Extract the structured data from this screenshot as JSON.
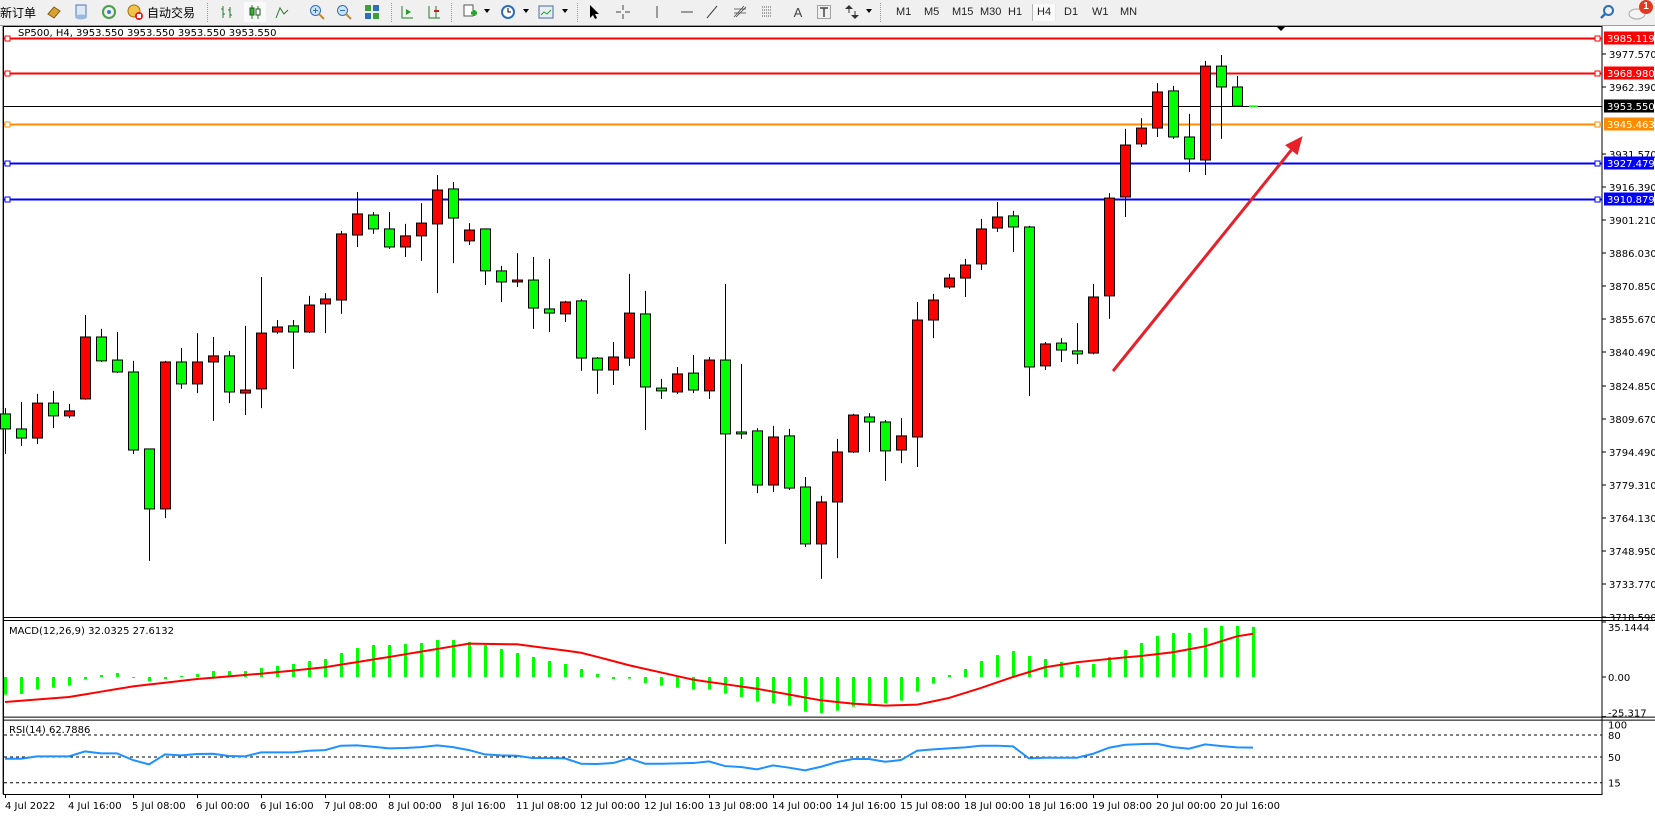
{
  "toolbar": {
    "new_order_label": "新订单",
    "auto_trading_label": "自动交易",
    "timeframes": [
      "M1",
      "M5",
      "M15",
      "M30",
      "H1",
      "H4",
      "D1",
      "W1",
      "MN"
    ],
    "selected_timeframe": "H4",
    "notification_count": "1",
    "icons": [
      "gold-icon",
      "quotes-icon",
      "signals-icon",
      "auto-trading-icon",
      "bar-chart-icon",
      "candlestick-icon",
      "line-chart-icon",
      "zoom-in-icon",
      "zoom-out-icon",
      "tile-windows-icon",
      "auto-scroll-icon",
      "chart-shift-icon",
      "indicators-icon",
      "periods-icon",
      "templates-icon",
      "cursor-icon",
      "crosshair-icon",
      "vertical-line-icon",
      "horizontal-line-icon",
      "trendline-icon",
      "fibonacci-icon",
      "fibo-fan-icon",
      "text-icon",
      "text-label-icon",
      "arrows-icon",
      "search-icon",
      "notification-icon"
    ]
  },
  "chart_header": "SP500, H4, 3953.550 3953.550 3953.550 3953.550",
  "chart_data": [
    {
      "type": "candlestick",
      "symbol": "SP500",
      "timeframe": "H4",
      "up_color": "#ff0000",
      "down_color": "#00ff00",
      "ylim": [
        3718.59,
        3990.45
      ],
      "y_ticks": [
        "3977.570",
        "3962.390",
        "3931.570",
        "3916.390",
        "3901.210",
        "3886.030",
        "3870.850",
        "3855.670",
        "3840.490",
        "3824.850",
        "3809.670",
        "3794.490",
        "3779.310",
        "3764.130",
        "3748.950",
        "3733.770",
        "3718.590"
      ],
      "x_ticks": [
        {
          "label": "4 Jul 2022",
          "t": "4 Jul 00:00"
        },
        {
          "label": "4 Jul 16:00",
          "t": "4 Jul 16:00"
        },
        {
          "label": "5 Jul 08:00",
          "t": "5 Jul 08:00"
        },
        {
          "label": "6 Jul 00:00",
          "t": "6 Jul 00:00"
        },
        {
          "label": "6 Jul 16:00",
          "t": "6 Jul 16:00"
        },
        {
          "label": "7 Jul 08:00",
          "t": "7 Jul 08:00"
        },
        {
          "label": "8 Jul 00:00",
          "t": "8 Jul 00:00"
        },
        {
          "label": "8 Jul 16:00",
          "t": "8 Jul 16:00"
        },
        {
          "label": "11 Jul 08:00",
          "t": "11 Jul 08:00"
        },
        {
          "label": "12 Jul 00:00",
          "t": "12 Jul 00:00"
        },
        {
          "label": "12 Jul 16:00",
          "t": "12 Jul 16:00"
        },
        {
          "label": "13 Jul 08:00",
          "t": "13 Jul 08:00"
        },
        {
          "label": "14 Jul 00:00",
          "t": "14 Jul 00:00"
        },
        {
          "label": "14 Jul 16:00",
          "t": "14 Jul 16:00"
        },
        {
          "label": "15 Jul 08:00",
          "t": "15 Jul 08:00"
        },
        {
          "label": "18 Jul 00:00",
          "t": "18 Jul 00:00"
        },
        {
          "label": "18 Jul 16:00",
          "t": "18 Jul 16:00"
        },
        {
          "label": "19 Jul 08:00",
          "t": "19 Jul 08:00"
        },
        {
          "label": "20 Jul 00:00",
          "t": "20 Jul 00:00"
        },
        {
          "label": "20 Jul 16:00",
          "t": "20 Jul 16:00"
        }
      ],
      "candles_fields": [
        "time",
        "open",
        "high",
        "low",
        "close"
      ],
      "candles": [
        [
          "4 Jul 00:00",
          3812.0,
          3814.7,
          3793.6,
          3805.1
        ],
        [
          "4 Jul 04:00",
          3805.1,
          3817.5,
          3797.3,
          3800.9
        ],
        [
          "4 Jul 08:00",
          3800.9,
          3821.2,
          3798.2,
          3817.0
        ],
        [
          "4 Jul 12:00",
          3817.0,
          3822.6,
          3805.5,
          3811.1
        ],
        [
          "4 Jul 16:00",
          3811.1,
          3816.6,
          3810.1,
          3813.4
        ],
        [
          "4 Jul 20:00",
          3818.9,
          3857.5,
          3818.5,
          3847.4
        ],
        [
          "5 Jul 00:00",
          3847.4,
          3851.1,
          3835.9,
          3836.4
        ],
        [
          "5 Jul 04:00",
          3836.8,
          3849.7,
          3830.8,
          3831.3
        ],
        [
          "5 Jul 08:00",
          3831.3,
          3836.4,
          3793.6,
          3795.4
        ],
        [
          "5 Jul 12:00",
          3795.9,
          3796.0,
          3744.4,
          3768.3
        ],
        [
          "5 Jul 16:00",
          3768.3,
          3836.4,
          3764.1,
          3835.9
        ],
        [
          "5 Jul 20:00",
          3835.9,
          3842.3,
          3823.5,
          3825.8
        ],
        [
          "6 Jul 00:00",
          3825.8,
          3849.2,
          3821.6,
          3835.9
        ],
        [
          "6 Jul 04:00",
          3835.9,
          3847.4,
          3808.8,
          3838.7
        ],
        [
          "6 Jul 08:00",
          3838.7,
          3841.0,
          3817.0,
          3822.1
        ],
        [
          "6 Jul 12:00",
          3821.6,
          3852.5,
          3811.5,
          3823.0
        ],
        [
          "6 Jul 16:00",
          3823.5,
          3875.0,
          3814.7,
          3849.2
        ],
        [
          "6 Jul 20:00",
          3849.7,
          3855.2,
          3848.8,
          3852.0
        ],
        [
          "7 Jul 00:00",
          3852.5,
          3855.2,
          3832.7,
          3849.7
        ],
        [
          "7 Jul 04:00",
          3849.7,
          3866.3,
          3849.2,
          3862.1
        ],
        [
          "7 Jul 08:00",
          3862.6,
          3867.6,
          3849.2,
          3864.9
        ],
        [
          "7 Jul 12:00",
          3864.4,
          3896.2,
          3858.0,
          3894.8
        ],
        [
          "7 Jul 16:00",
          3894.3,
          3914.1,
          3888.8,
          3904.0
        ],
        [
          "7 Jul 20:00",
          3903.5,
          3904.9,
          3894.8,
          3897.1
        ],
        [
          "8 Jul 00:00",
          3897.1,
          3904.9,
          3887.9,
          3888.8
        ],
        [
          "8 Jul 04:00",
          3888.8,
          3899.4,
          3884.2,
          3893.9
        ],
        [
          "8 Jul 08:00",
          3893.9,
          3909.0,
          3882.4,
          3899.8
        ],
        [
          "8 Jul 12:00",
          3899.4,
          3921.9,
          3867.6,
          3915.0
        ],
        [
          "8 Jul 16:00",
          3915.5,
          3918.7,
          3881.4,
          3902.1
        ],
        [
          "8 Jul 20:00",
          3891.6,
          3899.8,
          3889.7,
          3896.6
        ],
        [
          "11 Jul 00:00",
          3897.1,
          3897.1,
          3871.3,
          3877.8
        ],
        [
          "11 Jul 04:00",
          3877.8,
          3880.1,
          3863.5,
          3872.7
        ],
        [
          "11 Jul 08:00",
          3872.7,
          3886.0,
          3870.4,
          3873.6
        ],
        [
          "11 Jul 12:00",
          3873.6,
          3884.2,
          3851.1,
          3860.7
        ],
        [
          "11 Jul 16:00",
          3860.3,
          3883.3,
          3849.7,
          3858.4
        ],
        [
          "11 Jul 20:00",
          3858.0,
          3864.0,
          3854.3,
          3863.5
        ],
        [
          "12 Jul 00:00",
          3864.0,
          3864.9,
          3831.8,
          3837.7
        ],
        [
          "12 Jul 04:00",
          3837.7,
          3838.2,
          3821.2,
          3832.2
        ],
        [
          "12 Jul 08:00",
          3832.2,
          3845.1,
          3825.3,
          3838.2
        ],
        [
          "12 Jul 12:00",
          3837.7,
          3876.4,
          3834.1,
          3858.4
        ],
        [
          "12 Jul 16:00",
          3858.0,
          3868.6,
          3804.6,
          3824.4
        ],
        [
          "12 Jul 20:00",
          3823.9,
          3828.1,
          3818.9,
          3822.6
        ],
        [
          "13 Jul 00:00",
          3822.1,
          3833.6,
          3821.2,
          3830.4
        ],
        [
          "13 Jul 04:00",
          3830.8,
          3839.1,
          3821.6,
          3823.0
        ],
        [
          "13 Jul 08:00",
          3822.6,
          3838.2,
          3818.9,
          3836.8
        ],
        [
          "13 Jul 12:00",
          3836.8,
          3871.8,
          3752.2,
          3802.8
        ],
        [
          "13 Jul 16:00",
          3803.7,
          3835.0,
          3800.5,
          3802.8
        ],
        [
          "13 Jul 20:00",
          3804.2,
          3805.5,
          3775.6,
          3779.3
        ],
        [
          "14 Jul 00:00",
          3779.3,
          3806.5,
          3776.1,
          3801.4
        ],
        [
          "14 Jul 04:00",
          3801.9,
          3805.1,
          3777.0,
          3777.9
        ],
        [
          "14 Jul 08:00",
          3778.4,
          3783.0,
          3750.8,
          3752.2
        ],
        [
          "14 Jul 12:00",
          3752.2,
          3774.3,
          3736.1,
          3771.5
        ],
        [
          "14 Jul 16:00",
          3771.5,
          3800.5,
          3745.7,
          3794.5
        ],
        [
          "14 Jul 20:00",
          3794.5,
          3812.0,
          3794.0,
          3811.5
        ],
        [
          "15 Jul 00:00",
          3810.6,
          3812.4,
          3794.5,
          3808.3
        ],
        [
          "15 Jul 04:00",
          3808.3,
          3809.2,
          3781.2,
          3795.0
        ],
        [
          "15 Jul 08:00",
          3795.4,
          3810.1,
          3789.4,
          3801.9
        ],
        [
          "15 Jul 12:00",
          3801.4,
          3863.5,
          3787.6,
          3855.2
        ],
        [
          "15 Jul 16:00",
          3855.2,
          3867.2,
          3846.9,
          3864.4
        ],
        [
          "15 Jul 20:00",
          3870.4,
          3876.4,
          3869.5,
          3874.5
        ],
        [
          "18 Jul 00:00",
          3874.5,
          3883.3,
          3865.8,
          3880.5
        ],
        [
          "18 Jul 04:00",
          3881.0,
          3901.7,
          3878.2,
          3897.1
        ],
        [
          "18 Jul 08:00",
          3897.5,
          3909.5,
          3895.7,
          3902.6
        ],
        [
          "18 Jul 12:00",
          3903.1,
          3905.4,
          3886.5,
          3898.0
        ],
        [
          "18 Jul 16:00",
          3898.0,
          3898.5,
          3820.3,
          3833.6
        ],
        [
          "18 Jul 20:00",
          3834.1,
          3845.1,
          3832.2,
          3844.2
        ],
        [
          "19 Jul 00:00",
          3844.6,
          3846.9,
          3835.9,
          3841.4
        ],
        [
          "19 Jul 04:00",
          3841.0,
          3853.8,
          3835.0,
          3839.6
        ],
        [
          "19 Jul 08:00",
          3840.0,
          3871.8,
          3839.4,
          3865.8
        ],
        [
          "19 Jul 12:00",
          3866.3,
          3913.6,
          3855.7,
          3911.3
        ],
        [
          "19 Jul 16:00",
          3911.8,
          3943.1,
          3902.6,
          3935.7
        ],
        [
          "19 Jul 20:00",
          3936.2,
          3948.1,
          3934.8,
          3943.5
        ],
        [
          "20 Jul 00:00",
          3943.5,
          3964.2,
          3939.4,
          3960.1
        ],
        [
          "20 Jul 04:00",
          3960.6,
          3962.9,
          3938.5,
          3939.4
        ],
        [
          "20 Jul 08:00",
          3939.4,
          3950.0,
          3923.3,
          3929.3
        ],
        [
          "20 Jul 12:00",
          3928.8,
          3974.4,
          3921.9,
          3972.0
        ],
        [
          "20 Jul 16:00",
          3972.0,
          3977.1,
          3938.5,
          3962.4
        ],
        [
          "20 Jul 20:00",
          3962.4,
          3967.5,
          3953.55,
          3953.55
        ],
        [
          "21 Jul 00:00",
          3953.55,
          3953.55,
          3953.55,
          3953.55
        ]
      ],
      "horizontal_lines": [
        {
          "price": 3985.119,
          "label": "3985.119",
          "color": "#ff0000",
          "handles": true
        },
        {
          "price": 3968.98,
          "label": "3968.980",
          "color": "#ff0000",
          "handles": true
        },
        {
          "price": 3953.55,
          "label": "3953.550",
          "color": "#000000",
          "handles": false
        },
        {
          "price": 3945.463,
          "label": "3945.463",
          "color": "#ff8c00",
          "handles": true
        },
        {
          "price": 3927.479,
          "label": "3927.479",
          "color": "#0000ff",
          "handles": true
        },
        {
          "price": 3910.879,
          "label": "3910.879",
          "color": "#0000ff",
          "handles": true
        }
      ],
      "arrow": {
        "color": "#e8202a",
        "from_bar": 69.25,
        "from_price": 3831.7,
        "to_bar": 81.1,
        "to_price": 3939.8
      }
    },
    {
      "type": "bar+line",
      "title": "MACD(12,26,9) 32.0325 27.6132",
      "ylim": [
        -25.317,
        35.1444
      ],
      "y_ticks": [
        "35.1444",
        "0.00",
        "-25.317"
      ],
      "histogram_color": "#00ff00",
      "signal_color": "#ff0000",
      "macd": [
        -11.29,
        -10.86,
        -7.88,
        -6.82,
        -5.54,
        -1.7,
        1.28,
        2.56,
        -0.64,
        -2.77,
        -1.28,
        0.64,
        1.92,
        3.83,
        3.83,
        3.83,
        5.75,
        7.03,
        8.31,
        10.22,
        11.5,
        15.34,
        18.53,
        20.45,
        20.45,
        21.09,
        21.73,
        23.64,
        23.64,
        22.36,
        20.45,
        17.89,
        15.34,
        12.78,
        10.22,
        8.31,
        5.11,
        1.92,
        -1.28,
        -1.06,
        -3.83,
        -5.54,
        -6.82,
        -8.09,
        -8.09,
        -10.65,
        -12.78,
        -15.76,
        -16.61,
        -18.32,
        -22.15,
        -23.0,
        -21.51,
        -18.96,
        -17.25,
        -16.61,
        -15.12,
        -9.37,
        -4.26,
        1.28,
        5.11,
        10.22,
        14.06,
        16.61,
        13.42,
        11.5,
        9.58,
        7.67,
        8.31,
        12.78,
        17.25,
        21.73,
        26.2,
        28.12,
        28.12,
        31.31,
        32.59,
        32.59,
        32.03
      ],
      "signal": [
        -16.0,
        -15.2,
        -14.4,
        -13.6,
        -12.8,
        -11.1,
        -9.4,
        -7.7,
        -6.0,
        -4.8,
        -3.7,
        -2.5,
        -1.3,
        -0.5,
        0.4,
        1.3,
        2.1,
        3.1,
        4.1,
        5.2,
        6.2,
        7.9,
        9.5,
        11.2,
        12.8,
        14.5,
        16.2,
        17.9,
        19.6,
        21.3,
        21.2,
        21.0,
        20.9,
        19.6,
        18.2,
        16.9,
        15.5,
        12.9,
        10.2,
        7.5,
        5.2,
        2.9,
        0.6,
        -1.7,
        -3.2,
        -4.6,
        -6.1,
        -7.5,
        -9.4,
        -11.2,
        -13.1,
        -14.9,
        -16.0,
        -17.0,
        -17.7,
        -18.3,
        -18.0,
        -17.7,
        -15.6,
        -13.4,
        -10.2,
        -7.0,
        -3.5,
        0.0,
        3.1,
        6.2,
        7.8,
        9.4,
        10.5,
        11.5,
        12.5,
        13.4,
        14.6,
        15.8,
        17.7,
        19.6,
        22.8,
        26.0,
        27.61
      ]
    },
    {
      "type": "line",
      "title": "RSI(14) 62.7886",
      "ylim": [
        0,
        100
      ],
      "y_ticks": [
        "100",
        "80",
        "50",
        "15"
      ],
      "levels": [
        80,
        50,
        15
      ],
      "color": "#1e90ff",
      "values": [
        47.7,
        47.7,
        50.9,
        50.9,
        50.9,
        57.7,
        55.0,
        55.0,
        45.9,
        40.0,
        53.6,
        52.3,
        54.1,
        54.5,
        51.4,
        50.9,
        56.4,
        56.4,
        56.4,
        58.6,
        59.5,
        65.5,
        65.9,
        64.1,
        61.8,
        62.3,
        63.6,
        65.9,
        63.6,
        59.5,
        53.6,
        52.3,
        51.8,
        48.6,
        48.6,
        48.2,
        40.9,
        40.5,
        41.8,
        48.2,
        40.9,
        40.9,
        41.4,
        41.8,
        44.1,
        37.7,
        36.4,
        33.2,
        38.6,
        35.5,
        31.8,
        36.8,
        43.2,
        47.3,
        47.3,
        43.6,
        45.9,
        58.6,
        60.5,
        61.8,
        63.2,
        65.5,
        65.5,
        64.5,
        48.2,
        49.1,
        49.1,
        49.1,
        54.5,
        62.7,
        66.8,
        67.7,
        68.2,
        63.6,
        61.4,
        67.3,
        65.0,
        63.2,
        62.79
      ]
    }
  ]
}
